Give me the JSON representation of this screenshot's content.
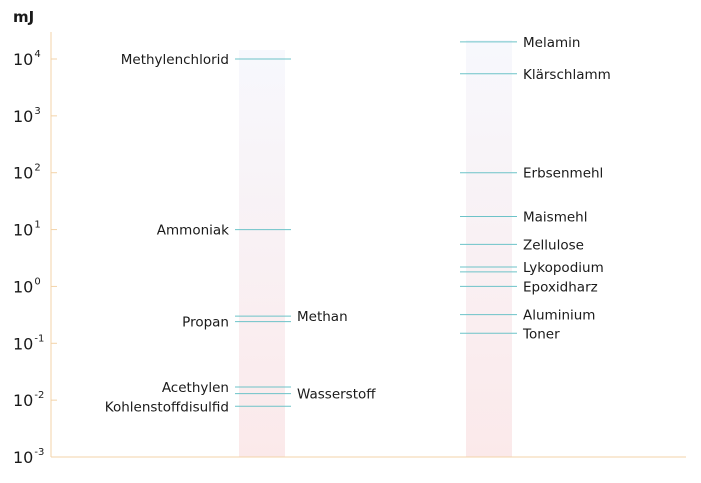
{
  "chart_data": {
    "type": "scatter",
    "title": "",
    "ylabel": "mJ",
    "yscale": "log",
    "ylim": [
      0.001,
      10000
    ],
    "yticks": [
      {
        "value": 10000,
        "base": "10",
        "exp": "4"
      },
      {
        "value": 1000,
        "base": "10",
        "exp": "3"
      },
      {
        "value": 100,
        "base": "10",
        "exp": "2"
      },
      {
        "value": 10,
        "base": "10",
        "exp": "1"
      },
      {
        "value": 1,
        "base": "10",
        "exp": "0"
      },
      {
        "value": 0.1,
        "base": "10",
        "exp": "-1"
      },
      {
        "value": 0.01,
        "base": "10",
        "exp": "-2"
      },
      {
        "value": 0.001,
        "base": "10",
        "exp": "-3"
      }
    ],
    "grid": false,
    "colors": {
      "axis": "#f3d3a8",
      "marker": "#6dc3c8",
      "column_top": "#f7f8fd",
      "column_bottom": "#fbe9ea"
    },
    "columns": [
      {
        "points": [
          {
            "label": "Methylenchlorid",
            "value": 10000,
            "side": "left"
          },
          {
            "label": "Ammoniak",
            "value": 10,
            "side": "left"
          },
          {
            "label": "Methan",
            "value": 0.3,
            "side": "right"
          },
          {
            "label": "Propan",
            "value": 0.24,
            "side": "left"
          },
          {
            "label": "Acethylen",
            "value": 0.017,
            "side": "left"
          },
          {
            "label": "Wasserstoff",
            "value": 0.013,
            "side": "right"
          },
          {
            "label": "Kohlenstoffdisulfid",
            "value": 0.0078,
            "side": "left"
          }
        ]
      },
      {
        "points": [
          {
            "label": "Melamin",
            "value": 20000,
            "side": "right"
          },
          {
            "label": "Klärschlamm",
            "value": 5500,
            "side": "right"
          },
          {
            "label": "Erbsenmehl",
            "value": 100,
            "side": "right"
          },
          {
            "label": "Maismehl",
            "value": 17,
            "side": "right"
          },
          {
            "label": "Zellulose",
            "value": 5.5,
            "side": "right"
          },
          {
            "label": "Lykopodium",
            "value": 2.2,
            "side": "right"
          },
          {
            "label": "",
            "value": 1.8,
            "side": "right"
          },
          {
            "label": "Epoxidharz",
            "value": 1,
            "side": "right"
          },
          {
            "label": "Aluminium",
            "value": 0.32,
            "side": "right"
          },
          {
            "label": "Toner",
            "value": 0.15,
            "side": "right"
          }
        ]
      }
    ]
  }
}
